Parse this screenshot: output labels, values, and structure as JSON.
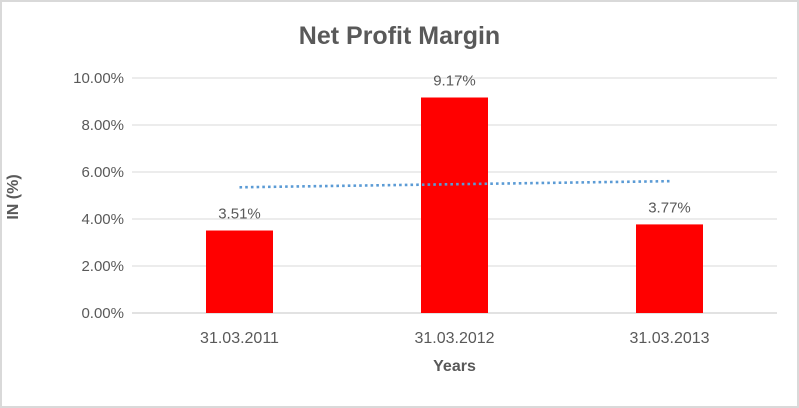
{
  "chart_data": {
    "type": "bar",
    "title": "Net Profit Margin",
    "xlabel": "Years",
    "ylabel": "IN (%)",
    "categories": [
      "31.03.2011",
      "31.03.2012",
      "31.03.2013"
    ],
    "values": [
      3.51,
      9.17,
      3.77
    ],
    "data_labels": [
      "3.51%",
      "9.17%",
      "3.77%"
    ],
    "y_ticks": [
      {
        "label": "0.00%",
        "value": 0
      },
      {
        "label": "2.00%",
        "value": 2
      },
      {
        "label": "4.00%",
        "value": 4
      },
      {
        "label": "6.00%",
        "value": 6
      },
      {
        "label": "8.00%",
        "value": 8
      },
      {
        "label": "10.00%",
        "value": 10
      }
    ],
    "ylim": [
      0,
      10
    ],
    "grid": true,
    "legend": "none",
    "trendline": {
      "type": "linear",
      "style": "dotted",
      "start_value": 5.35,
      "end_value": 5.61
    },
    "colors": {
      "bar": "#ff0000",
      "trendline": "#5b9bd5",
      "gridline": "#d9d9d9",
      "axis_line": "#c6c6c6",
      "text": "#595959",
      "tick_text": "#595959",
      "frame_border": "#d9d9d9"
    }
  }
}
